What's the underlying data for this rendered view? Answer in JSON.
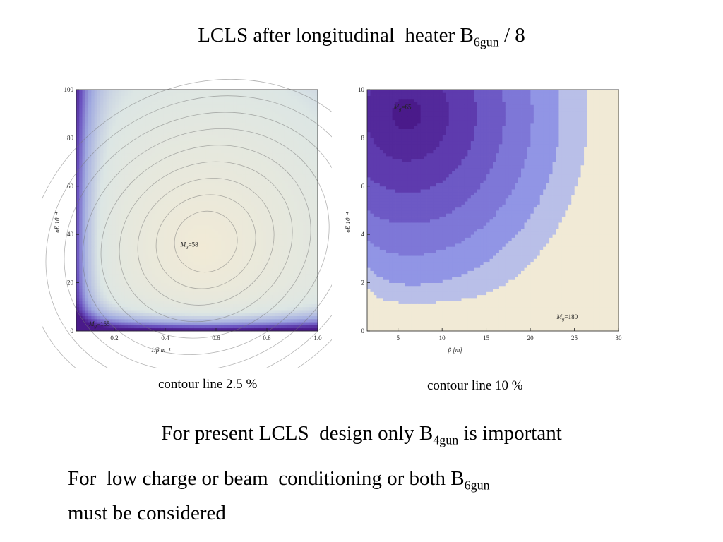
{
  "slide": {
    "title_main": "LCLS after longitudinal  heater B",
    "title_sub": "6gun",
    "title_tail": " / 8",
    "caption_left": "contour line 2.5 %",
    "caption_right": "contour line 10 %",
    "note1_pre": "For present LCLS  design only B",
    "note1_sub": "4gun",
    "note1_post": " is important",
    "note2_pre": "For  low charge or beam  conditioning or both B",
    "note2_sub": "6gun",
    "note2_line2": "must be considered"
  },
  "chart_data": [
    {
      "type": "heatmap",
      "xlabel": "1/β m⁻¹",
      "ylabel": "σE 10⁻⁴",
      "xlim": [
        0.05,
        1.0
      ],
      "ylim": [
        0,
        100
      ],
      "xticks": [
        "0.2",
        "0.4",
        "0.6",
        "0.8",
        "1.0"
      ],
      "xtick_values": [
        0.2,
        0.4,
        0.6,
        0.8,
        1.0
      ],
      "yticks": [
        "0",
        "20",
        "40",
        "60",
        "80",
        "100"
      ],
      "ytick_values": [
        0,
        20,
        40,
        60,
        80,
        100
      ],
      "contour_step_percent": 2.5,
      "annotations": [
        {
          "text": "Mg=58",
          "x": 0.46,
          "y": 35
        },
        {
          "text": "Mg=155",
          "x": 0.1,
          "y": 2
        }
      ],
      "colors": {
        "min": "#f1ead6",
        "max": "#4a1a8a"
      }
    },
    {
      "type": "heatmap",
      "xlabel": "β [m]",
      "ylabel": "σE 10⁻⁴",
      "xlim": [
        1.5,
        30
      ],
      "ylim": [
        0,
        10
      ],
      "xticks": [
        "5",
        "10",
        "15",
        "20",
        "25",
        "30"
      ],
      "xtick_values": [
        5,
        10,
        15,
        20,
        25,
        30
      ],
      "yticks": [
        "0",
        "2",
        "4",
        "6",
        "8",
        "10"
      ],
      "ytick_values": [
        0,
        2,
        4,
        6,
        8,
        10
      ],
      "contour_step_percent": 10,
      "annotations": [
        {
          "text": "Mg=65",
          "x": 4.5,
          "y": 9.2
        },
        {
          "text": "Mg=180",
          "x": 23,
          "y": 0.5
        }
      ],
      "colors": {
        "min": "#4a1a8a",
        "max": "#f1ead6"
      }
    }
  ]
}
